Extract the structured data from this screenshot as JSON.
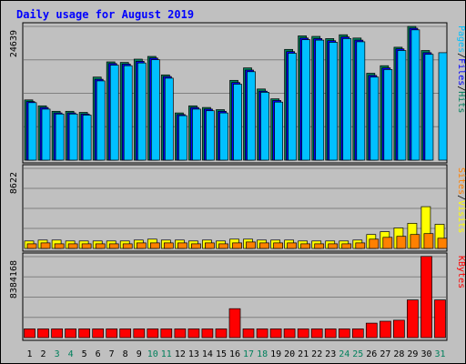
{
  "chart_data": {
    "type": "bar",
    "title": "Daily usage for August 2019",
    "categories": [
      "1",
      "2",
      "3",
      "4",
      "5",
      "6",
      "7",
      "8",
      "9",
      "10",
      "11",
      "12",
      "13",
      "14",
      "15",
      "16",
      "17",
      "18",
      "19",
      "20",
      "21",
      "22",
      "23",
      "24",
      "25",
      "26",
      "27",
      "28",
      "29",
      "30",
      "31"
    ],
    "weekend_days": [
      "3",
      "4",
      "10",
      "11",
      "17",
      "18",
      "24",
      "25",
      "31"
    ],
    "panels": [
      {
        "id": "top",
        "max_label": "24639",
        "ylim": [
          0,
          24639
        ],
        "series": [
          {
            "name": "Hits",
            "color": "#00805c",
            "values": [
              11100,
              10000,
              9000,
              9000,
              8800,
              15300,
              18100,
              18000,
              18600,
              19100,
              15700,
              8700,
              10000,
              9700,
              9300,
              14700,
              17000,
              13100,
              11300,
              20400,
              22900,
              22800,
              22400,
              23100,
              22500,
              16000,
              17400,
              20800,
              24639,
              20200,
              0
            ]
          },
          {
            "name": "Files",
            "color": "#0000ff",
            "values": [
              10800,
              9700,
              8700,
              8700,
              8500,
              14900,
              17800,
              17700,
              18200,
              18800,
              15400,
              8400,
              9700,
              9400,
              9000,
              14300,
              16600,
              12700,
              11000,
              20000,
              22500,
              22400,
              22000,
              22700,
              22100,
              15600,
              17000,
              20500,
              24300,
              19800,
              0
            ]
          },
          {
            "name": "Pages",
            "color": "#00c0ff",
            "values": [
              10600,
              9400,
              8500,
              8500,
              8300,
              14600,
              17500,
              17400,
              17900,
              18500,
              15100,
              8200,
              9400,
              9100,
              8700,
              14000,
              16300,
              12500,
              10700,
              19700,
              22200,
              22100,
              21700,
              22400,
              21800,
              15300,
              16700,
              20200,
              24000,
              19500,
              19800
            ]
          }
        ]
      },
      {
        "id": "middle",
        "max_label": "8622",
        "ylim": [
          0,
          8622
        ],
        "series": [
          {
            "name": "Visits",
            "color": "#ffff00",
            "values": [
              800,
              900,
              900,
              800,
              800,
              800,
              800,
              800,
              900,
              1000,
              900,
              900,
              800,
              900,
              800,
              1000,
              1000,
              900,
              900,
              900,
              800,
              800,
              800,
              800,
              900,
              1500,
              1800,
              2200,
              2700,
              4500,
              2600
            ]
          },
          {
            "name": "Sites",
            "color": "#ff8000",
            "values": [
              500,
              600,
              500,
              500,
              500,
              500,
              500,
              500,
              600,
              600,
              600,
              600,
              500,
              600,
              500,
              600,
              700,
              600,
              600,
              600,
              500,
              500,
              500,
              500,
              600,
              1000,
              1200,
              1300,
              1500,
              1600,
              1100
            ]
          }
        ]
      },
      {
        "id": "bottom",
        "max_label": "8384168",
        "ylim": [
          0,
          8384168
        ],
        "series": [
          {
            "name": "KBytes",
            "color": "#ff0000",
            "values": [
              900000,
              900000,
              900000,
              900000,
              900000,
              900000,
              900000,
              900000,
              900000,
              900000,
              900000,
              900000,
              900000,
              900000,
              900000,
              3000000,
              900000,
              900000,
              900000,
              900000,
              900000,
              900000,
              900000,
              900000,
              900000,
              1500000,
              1700000,
              1800000,
              3900000,
              8400000,
              3900000
            ]
          }
        ]
      }
    ],
    "legends": {
      "top": [
        {
          "text": "Pages",
          "color": "#00c0ff"
        },
        {
          "text": "/",
          "color": "#000000"
        },
        {
          "text": "Files",
          "color": "#0000ff"
        },
        {
          "text": "/",
          "color": "#000000"
        },
        {
          "text": "Hits",
          "color": "#00805c"
        }
      ],
      "middle": [
        {
          "text": "Sites",
          "color": "#ff8000"
        },
        {
          "text": "/",
          "color": "#000000"
        },
        {
          "text": "Visits",
          "color": "#ffff00"
        }
      ],
      "bottom": [
        {
          "text": "KBytes",
          "color": "#ff0000"
        }
      ]
    },
    "colors": {
      "title": "#0000ff",
      "plot_background": "#c0c0c0",
      "frame_background": "#c0c0c0",
      "gridline": "#808080",
      "day_label": "#000000",
      "weekend_label": "#00805c"
    },
    "grid": true
  }
}
